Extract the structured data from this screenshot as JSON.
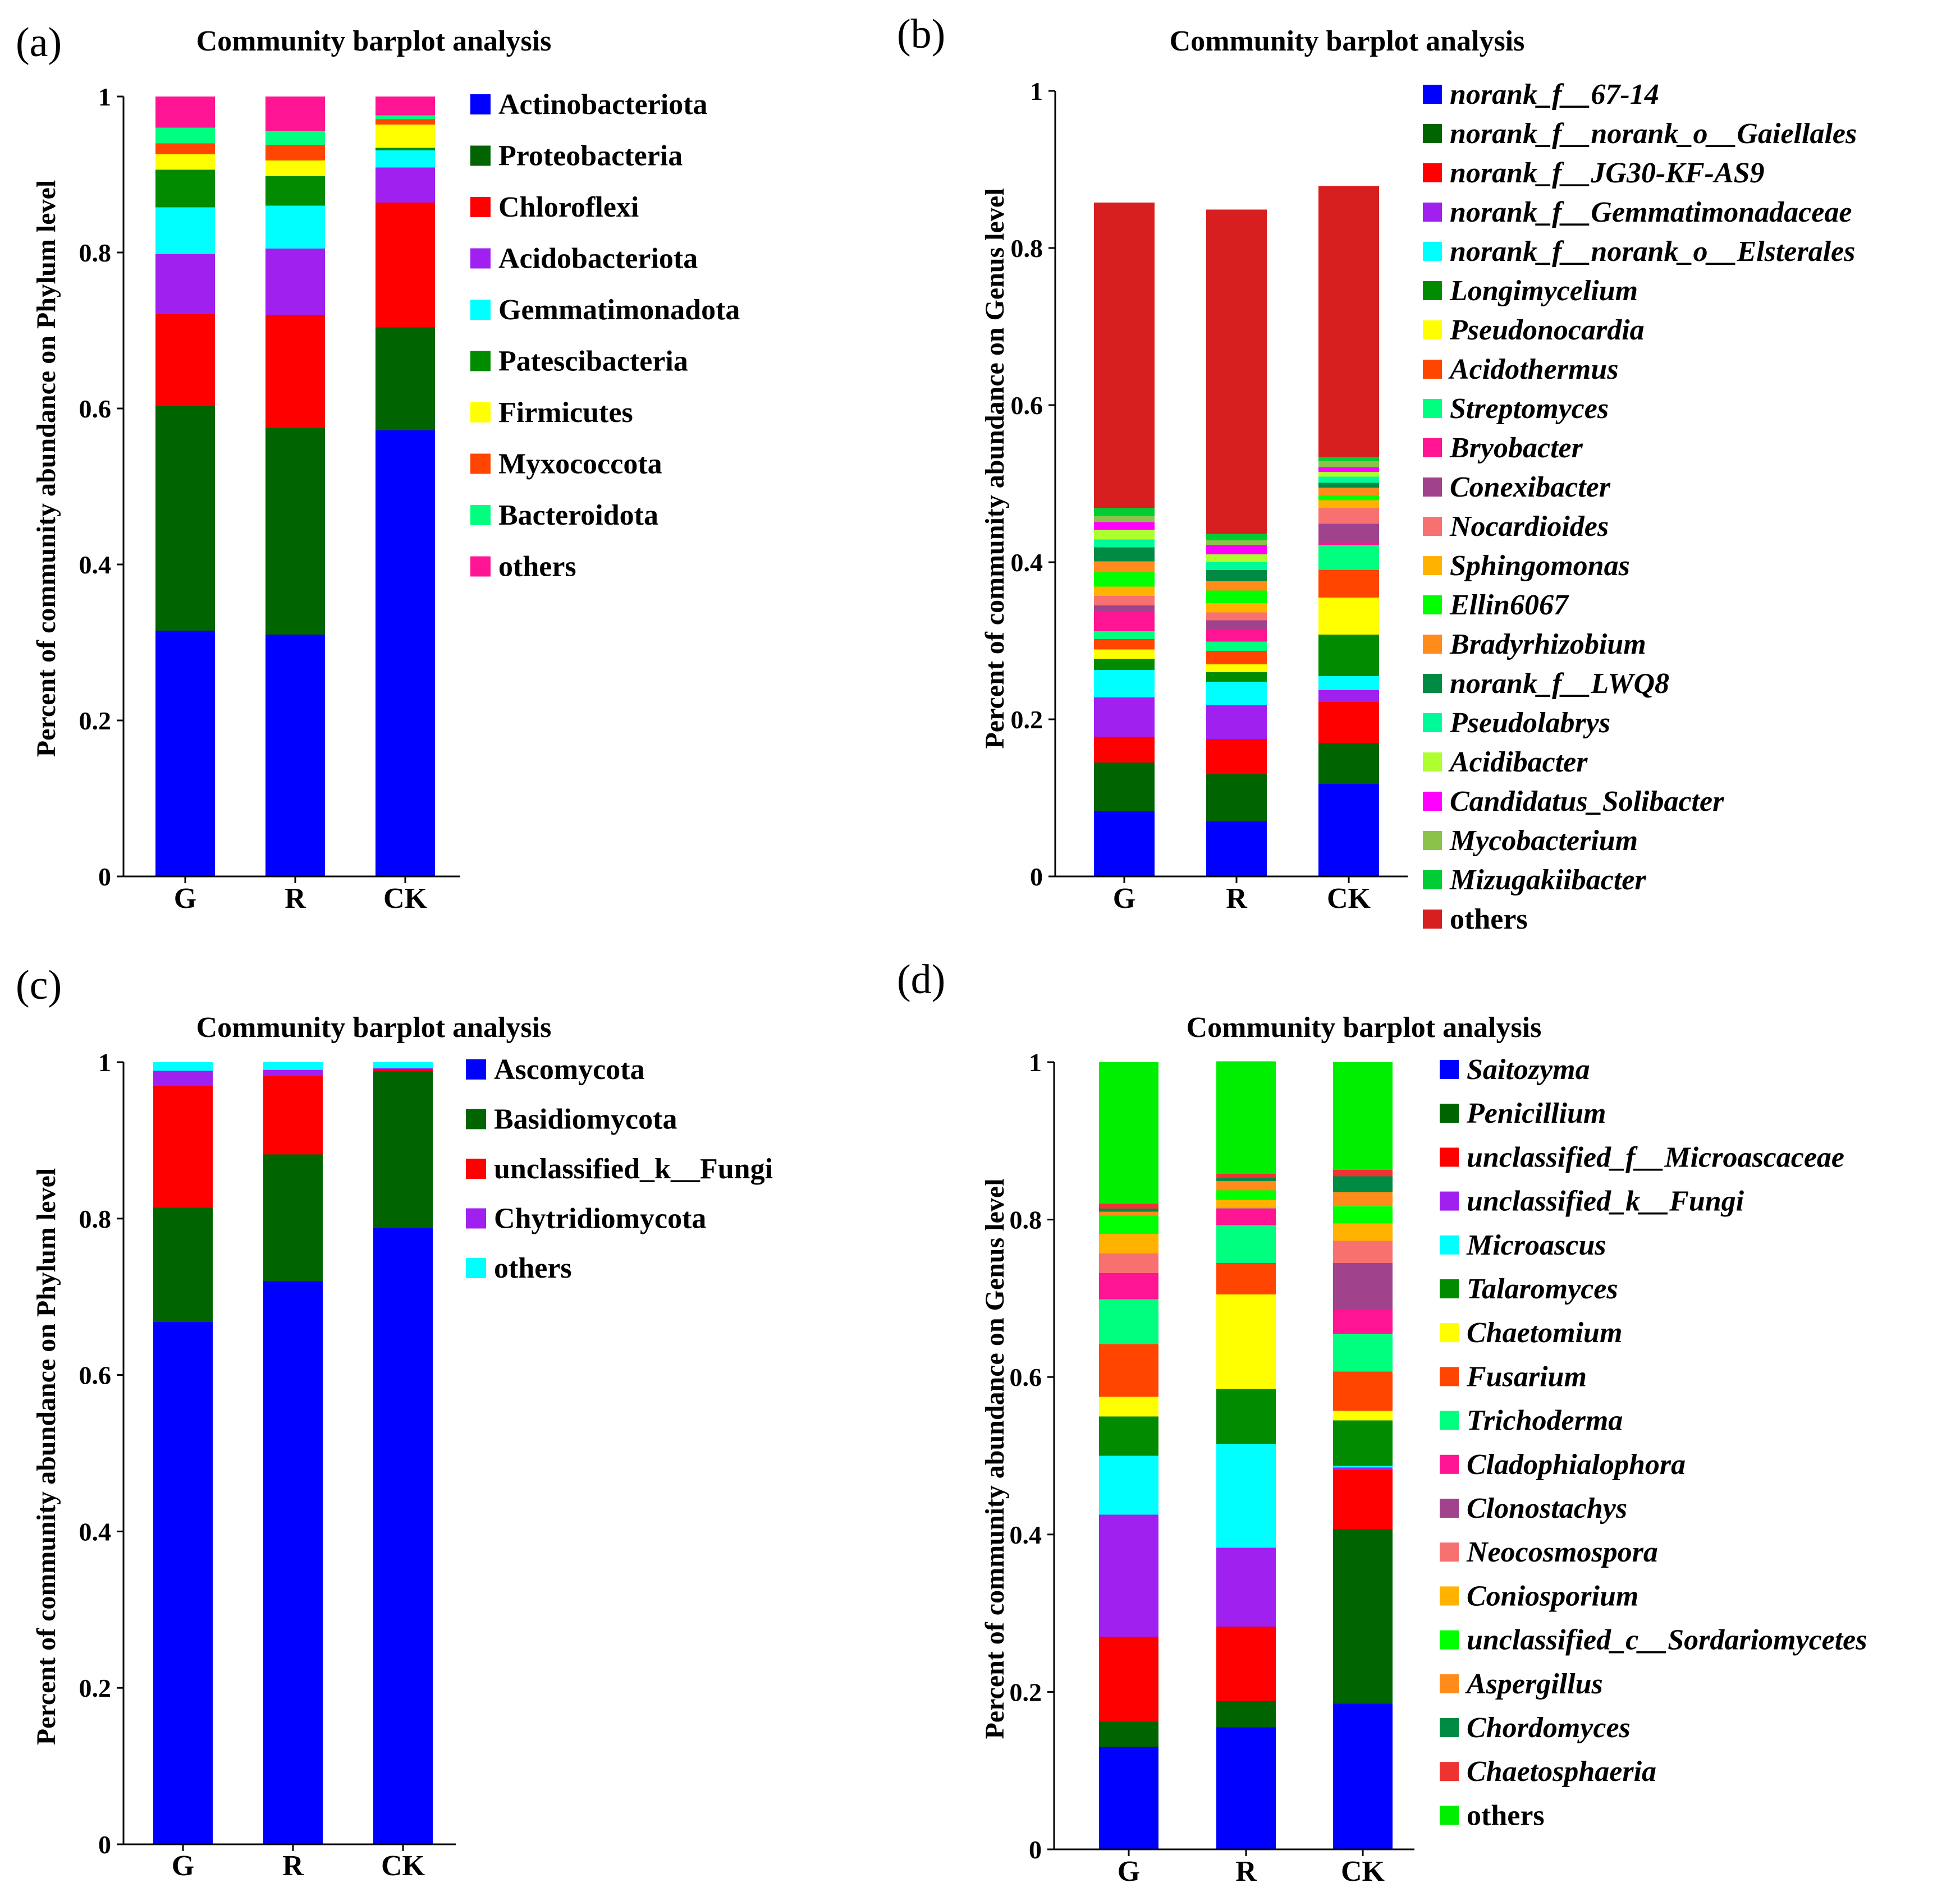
{
  "figure": {
    "panels": [
      {
        "id": "a",
        "label": "(a)",
        "title": "Community barplot analysis",
        "ylabel": "Percent of community abundance on Phylum level",
        "italic_legend": false,
        "yticks": [
          "0",
          "0.2",
          "0.4",
          "0.6",
          "0.8",
          "1"
        ]
      },
      {
        "id": "b",
        "label": "(b)",
        "title": "Community barplot analysis",
        "ylabel": "Percent of community abundance on Genus level",
        "italic_legend": true,
        "yticks": [
          "0",
          "0.2",
          "0.4",
          "0.6",
          "0.8",
          "1"
        ]
      },
      {
        "id": "c",
        "label": "(c)",
        "title": "Community barplot analysis",
        "ylabel": "Percent of community abundance on Phylum level",
        "italic_legend": false,
        "yticks": [
          "0",
          "0.2",
          "0.4",
          "0.6",
          "0.8",
          "1"
        ]
      },
      {
        "id": "d",
        "label": "(d)",
        "title": "Community barplot analysis",
        "ylabel": "Percent of community abundance on Genus level",
        "italic_legend": true,
        "yticks": [
          "0",
          "0.2",
          "0.4",
          "0.6",
          "0.8",
          "1"
        ]
      }
    ]
  },
  "chart_data": [
    {
      "panel": "a",
      "type": "bar",
      "stacked": true,
      "title": "Community barplot analysis",
      "xlabel": "",
      "ylabel": "Percent of community abundance on Phylum level",
      "ylim": [
        0,
        1
      ],
      "categories": [
        "G",
        "R",
        "CK"
      ],
      "series": [
        {
          "name": "Actinobacteriota",
          "color": "#0000FF",
          "values": [
            0.315,
            0.31,
            0.572
          ]
        },
        {
          "name": "Proteobacteria",
          "color": "#006400",
          "values": [
            0.288,
            0.265,
            0.132
          ]
        },
        {
          "name": "Chloroflexi",
          "color": "#FF0000",
          "values": [
            0.118,
            0.145,
            0.16
          ]
        },
        {
          "name": "Acidobacteriota",
          "color": "#A020F0",
          "values": [
            0.077,
            0.085,
            0.045
          ]
        },
        {
          "name": "Gemmatimonadota",
          "color": "#00FFFF",
          "values": [
            0.06,
            0.055,
            0.022
          ]
        },
        {
          "name": "Patescibacteria",
          "color": "#008B00",
          "values": [
            0.048,
            0.038,
            0.003
          ]
        },
        {
          "name": "Firmicutes",
          "color": "#FFFF00",
          "values": [
            0.02,
            0.02,
            0.03
          ]
        },
        {
          "name": "Myxococcota",
          "color": "#FF4500",
          "values": [
            0.014,
            0.02,
            0.007
          ]
        },
        {
          "name": "Bacteroidota",
          "color": "#00FF7F",
          "values": [
            0.02,
            0.018,
            0.005
          ]
        },
        {
          "name": "others",
          "color": "#FF1493",
          "values": [
            0.04,
            0.044,
            0.024
          ]
        }
      ]
    },
    {
      "panel": "b",
      "type": "bar",
      "stacked": true,
      "title": "Community barplot analysis",
      "xlabel": "",
      "ylabel": "Percent of community abundance on Genus level",
      "ylim": [
        0,
        1
      ],
      "categories": [
        "G",
        "R",
        "CK"
      ],
      "series": [
        {
          "name": "norank_f__67-14",
          "color": "#0000FF",
          "values": [
            0.083,
            0.07,
            0.118
          ]
        },
        {
          "name": "norank_f__norank_o__Gaiellales",
          "color": "#006400",
          "values": [
            0.062,
            0.06,
            0.052
          ]
        },
        {
          "name": "norank_f__JG30-KF-AS9",
          "color": "#FF0000",
          "values": [
            0.033,
            0.045,
            0.052
          ]
        },
        {
          "name": "norank_f__Gemmatimonadaceae",
          "color": "#A020F0",
          "values": [
            0.05,
            0.043,
            0.015
          ]
        },
        {
          "name": "norank_f__norank_o__Elsterales",
          "color": "#00FFFF",
          "values": [
            0.035,
            0.03,
            0.018
          ]
        },
        {
          "name": "Longimycelium",
          "color": "#008B00",
          "values": [
            0.014,
            0.012,
            0.053
          ]
        },
        {
          "name": "Pseudonocardia",
          "color": "#FFFF00",
          "values": [
            0.012,
            0.01,
            0.047
          ]
        },
        {
          "name": "Acidothermus",
          "color": "#FF4500",
          "values": [
            0.013,
            0.017,
            0.035
          ]
        },
        {
          "name": "Streptomyces",
          "color": "#00FF7F",
          "values": [
            0.01,
            0.012,
            0.032
          ]
        },
        {
          "name": "Bryobacter",
          "color": "#FF1493",
          "values": [
            0.025,
            0.015,
            0.003
          ]
        },
        {
          "name": "Conexibacter",
          "color": "#A0428C",
          "values": [
            0.008,
            0.012,
            0.024
          ]
        },
        {
          "name": "Nocardioides",
          "color": "#F87171",
          "values": [
            0.012,
            0.01,
            0.02
          ]
        },
        {
          "name": "Sphingomonas",
          "color": "#FFB300",
          "values": [
            0.012,
            0.012,
            0.01
          ]
        },
        {
          "name": "Ellin6067",
          "color": "#00FF00",
          "values": [
            0.018,
            0.016,
            0.006
          ]
        },
        {
          "name": "Bradyrhizobium",
          "color": "#FF8C1A",
          "values": [
            0.014,
            0.012,
            0.01
          ]
        },
        {
          "name": "norank_f__LWQ8",
          "color": "#008B45",
          "values": [
            0.018,
            0.014,
            0.006
          ]
        },
        {
          "name": "Pseudolabrys",
          "color": "#00FA9A",
          "values": [
            0.01,
            0.01,
            0.008
          ]
        },
        {
          "name": "Acidibacter",
          "color": "#ADFF2F",
          "values": [
            0.012,
            0.01,
            0.006
          ]
        },
        {
          "name": "Candidatus_Solibacter",
          "color": "#FF00FF",
          "values": [
            0.01,
            0.012,
            0.006
          ]
        },
        {
          "name": "Mycobacterium",
          "color": "#8BC34A",
          "values": [
            0.008,
            0.006,
            0.008
          ]
        },
        {
          "name": "Mizugakiibacter",
          "color": "#00CC33",
          "values": [
            0.01,
            0.008,
            0.005
          ]
        },
        {
          "name": "others",
          "color": "#D71F1F",
          "values": [
            0.389,
            0.413,
            0.345
          ]
        }
      ]
    },
    {
      "panel": "c",
      "type": "bar",
      "stacked": true,
      "title": "Community barplot analysis",
      "xlabel": "",
      "ylabel": "Percent of community abundance on Phylum level",
      "ylim": [
        0,
        1
      ],
      "categories": [
        "G",
        "R",
        "CK"
      ],
      "series": [
        {
          "name": "Ascomycota",
          "color": "#0000FF",
          "values": [
            0.668,
            0.72,
            0.788
          ]
        },
        {
          "name": "Basidiomycota",
          "color": "#006400",
          "values": [
            0.146,
            0.162,
            0.2
          ]
        },
        {
          "name": "unclassified_k__Fungi",
          "color": "#FF0000",
          "values": [
            0.155,
            0.1,
            0.003
          ]
        },
        {
          "name": "Chytridiomycota",
          "color": "#A020F0",
          "values": [
            0.02,
            0.008,
            0.001
          ]
        },
        {
          "name": "others",
          "color": "#00FFFF",
          "values": [
            0.011,
            0.01,
            0.008
          ]
        }
      ]
    },
    {
      "panel": "d",
      "type": "bar",
      "stacked": true,
      "title": "Community barplot analysis",
      "xlabel": "",
      "ylabel": "Percent of community abundance on Genus level",
      "ylim": [
        0,
        1
      ],
      "categories": [
        "G",
        "R",
        "CK"
      ],
      "series": [
        {
          "name": "Saitozyma",
          "color": "#0000FF",
          "values": [
            0.13,
            0.155,
            0.185
          ]
        },
        {
          "name": "Penicillium",
          "color": "#006400",
          "values": [
            0.032,
            0.033,
            0.222
          ]
        },
        {
          "name": "unclassified_f__Microascaceae",
          "color": "#FF0000",
          "values": [
            0.108,
            0.095,
            0.075
          ]
        },
        {
          "name": "unclassified_k__Fungi",
          "color": "#A020F0",
          "values": [
            0.155,
            0.1,
            0.003
          ]
        },
        {
          "name": "Microascus",
          "color": "#00FFFF",
          "values": [
            0.075,
            0.132,
            0.002
          ]
        },
        {
          "name": "Talaromyces",
          "color": "#008B00",
          "values": [
            0.05,
            0.07,
            0.058
          ]
        },
        {
          "name": "Chaetomium",
          "color": "#FFFF00",
          "values": [
            0.025,
            0.12,
            0.012
          ]
        },
        {
          "name": "Fusarium",
          "color": "#FF4500",
          "values": [
            0.067,
            0.04,
            0.05
          ]
        },
        {
          "name": "Trichoderma",
          "color": "#00FF7F",
          "values": [
            0.057,
            0.048,
            0.048
          ]
        },
        {
          "name": "Cladophialophora",
          "color": "#FF1493",
          "values": [
            0.032,
            0.02,
            0.03
          ]
        },
        {
          "name": "Clonostachys",
          "color": "#A0428C",
          "values": [
            0.001,
            0.001,
            0.06
          ]
        },
        {
          "name": "Neocosmospora",
          "color": "#F87171",
          "values": [
            0.025,
            0.001,
            0.028
          ]
        },
        {
          "name": "Coniosporium",
          "color": "#FFB300",
          "values": [
            0.025,
            0.01,
            0.022
          ]
        },
        {
          "name": "unclassified_c__Sordariomycetes",
          "color": "#00FF00",
          "values": [
            0.023,
            0.012,
            0.022
          ]
        },
        {
          "name": "Aspergillus",
          "color": "#FF8C1A",
          "values": [
            0.005,
            0.012,
            0.018
          ]
        },
        {
          "name": "Chordomyces",
          "color": "#008B45",
          "values": [
            0.004,
            0.004,
            0.02
          ]
        },
        {
          "name": "Chaetosphaeria",
          "color": "#EE3333",
          "values": [
            0.006,
            0.005,
            0.008
          ]
        },
        {
          "name": "others",
          "color": "#00EE00",
          "values": [
            0.18,
            0.143,
            0.137
          ]
        }
      ]
    }
  ]
}
